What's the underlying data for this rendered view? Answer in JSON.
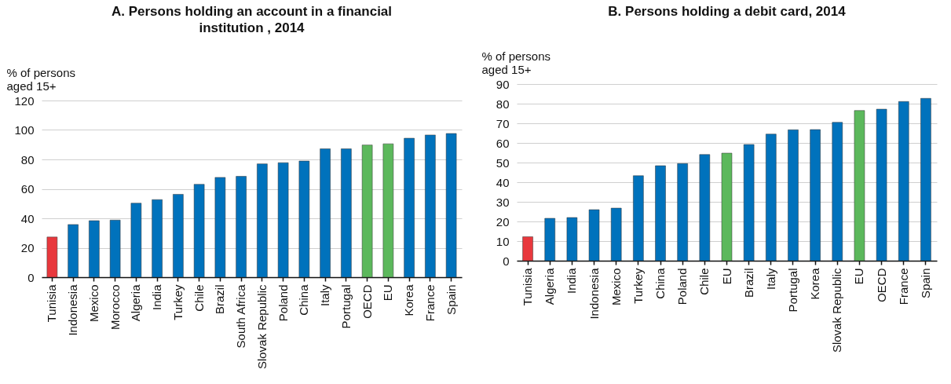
{
  "chart_data": [
    {
      "type": "bar",
      "title": "A. Persons holding an account in a financial institution , 2014",
      "ylabel": "% of persons aged 15+",
      "categories": [
        "Tunisia",
        "Indonesia",
        "Mexico",
        "Morocco",
        "Algeria",
        "India",
        "Turkey",
        "Chile",
        "Brazil",
        "South Africa",
        "Slovak Republic",
        "Poland",
        "China",
        "Italy",
        "Portugal",
        "OECD",
        "EU",
        "Korea",
        "France",
        "Spain"
      ],
      "values": [
        27.3,
        35.8,
        38.4,
        38.8,
        50.3,
        52.7,
        56.3,
        63.1,
        67.8,
        68.5,
        77,
        77.8,
        78.9,
        87.2,
        87.2,
        89.8,
        90.6,
        94.4,
        96.6,
        97.6
      ],
      "colors": [
        "#e8383d",
        "#0072bc",
        "#0072bc",
        "#0072bc",
        "#0072bc",
        "#0072bc",
        "#0072bc",
        "#0072bc",
        "#0072bc",
        "#0072bc",
        "#0072bc",
        "#0072bc",
        "#0072bc",
        "#0072bc",
        "#0072bc",
        "#5cb85c",
        "#5cb85c",
        "#0072bc",
        "#0072bc",
        "#0072bc"
      ],
      "ylim": [
        0,
        120
      ],
      "yticks": [
        0,
        20,
        40,
        60,
        80,
        100,
        120
      ],
      "grid": "y"
    },
    {
      "type": "bar",
      "title": "B.  Persons holding a debit card, 2014",
      "ylabel": "% of persons aged 15+",
      "categories": [
        "Tunisia",
        "Algeria",
        "India",
        "Indonesia",
        "Mexico",
        "Turkey",
        "China",
        "Poland",
        "Chile",
        "EU",
        "Brazil",
        "Italy",
        "Portugal",
        "Korea",
        "Slovak Republic",
        "EU",
        "OECD",
        "France",
        "Spain"
      ],
      "values": [
        12.2,
        21.6,
        22,
        26,
        26.8,
        43.3,
        48.4,
        49.5,
        54.1,
        54.8,
        59.2,
        64.5,
        66.7,
        66.8,
        70.5,
        76.5,
        77.2,
        81.1,
        82.7
      ],
      "colors": [
        "#e8383d",
        "#0072bc",
        "#0072bc",
        "#0072bc",
        "#0072bc",
        "#0072bc",
        "#0072bc",
        "#0072bc",
        "#0072bc",
        "#5cb85c",
        "#0072bc",
        "#0072bc",
        "#0072bc",
        "#0072bc",
        "#0072bc",
        "#5cb85c",
        "#0072bc",
        "#0072bc",
        "#0072bc"
      ],
      "ylim": [
        0,
        90
      ],
      "yticks": [
        0,
        10,
        20,
        30,
        40,
        50,
        60,
        70,
        80,
        90
      ],
      "grid": "y"
    }
  ]
}
